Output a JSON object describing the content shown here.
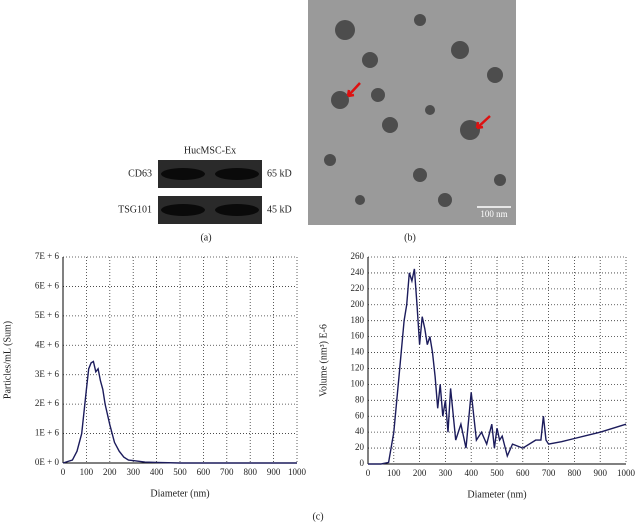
{
  "figure": {
    "blot": {
      "title": "HucMSC-Ex",
      "rows": [
        {
          "name": "CD63",
          "size": "65 kD"
        },
        {
          "name": "TSG101",
          "size": "45 kD"
        }
      ]
    },
    "scale_bar": "100 nm",
    "panel_labels": [
      "(a)",
      "(b)",
      "(c)"
    ]
  },
  "chart_data": [
    {
      "type": "line",
      "xlabel": "Diameter (nm)",
      "ylabel": "Particles/mL (Sum)",
      "color": "#1c1c5c",
      "grid": true,
      "x": [
        0,
        20,
        40,
        60,
        80,
        100,
        110,
        120,
        130,
        140,
        150,
        160,
        170,
        180,
        200,
        220,
        240,
        260,
        280,
        300,
        350,
        400,
        500,
        600,
        700,
        800,
        900,
        1000
      ],
      "values": [
        0,
        50000,
        100000,
        400000,
        1000000,
        2500000,
        3200000,
        3400000,
        3450000,
        3100000,
        3200000,
        2800000,
        2500000,
        2000000,
        1300000,
        700000,
        400000,
        200000,
        100000,
        80000,
        30000,
        20000,
        0,
        0,
        0,
        0,
        0,
        0
      ],
      "xlim": [
        0,
        1000
      ],
      "xticks": [
        0,
        100,
        200,
        300,
        400,
        500,
        600,
        700,
        800,
        900,
        1000
      ],
      "ylim": [
        0,
        7000000
      ],
      "yticks": [
        {
          "value": 0,
          "label": "0E + 0"
        },
        {
          "value": 1000000,
          "label": "1E + 6"
        },
        {
          "value": 2000000,
          "label": "2E + 6"
        },
        {
          "value": 3000000,
          "label": "3E + 6"
        },
        {
          "value": 4000000,
          "label": "4E + 6"
        },
        {
          "value": 5000000,
          "label": "5E + 6"
        },
        {
          "value": 6000000,
          "label": "6E + 6"
        },
        {
          "value": 7000000,
          "label": "7E + 6"
        }
      ]
    },
    {
      "type": "line",
      "xlabel": "Diameter (nm)",
      "ylabel": "Volume (nm³) E-6",
      "color": "#1c1c5c",
      "grid": true,
      "x": [
        0,
        50,
        80,
        100,
        120,
        140,
        150,
        160,
        170,
        180,
        190,
        200,
        210,
        220,
        230,
        240,
        250,
        260,
        270,
        280,
        290,
        300,
        310,
        320,
        340,
        360,
        380,
        400,
        410,
        420,
        440,
        460,
        480,
        490,
        500,
        510,
        520,
        540,
        560,
        600,
        650,
        670,
        680,
        690,
        700,
        750,
        800,
        850,
        900,
        950,
        1000
      ],
      "values": [
        0,
        0,
        2,
        40,
        110,
        180,
        200,
        240,
        230,
        245,
        200,
        150,
        185,
        170,
        150,
        160,
        140,
        110,
        70,
        100,
        60,
        80,
        40,
        95,
        30,
        50,
        20,
        90,
        60,
        30,
        40,
        25,
        50,
        20,
        45,
        30,
        35,
        10,
        25,
        20,
        30,
        30,
        60,
        30,
        25,
        28,
        32,
        36,
        40,
        45,
        50
      ],
      "xlim": [
        0,
        1000
      ],
      "xticks": [
        0,
        100,
        200,
        300,
        400,
        500,
        600,
        700,
        800,
        900,
        1000
      ],
      "ylim": [
        0,
        260
      ],
      "yticks": [
        0,
        20,
        40,
        60,
        80,
        100,
        120,
        140,
        160,
        180,
        200,
        220,
        240,
        260
      ]
    }
  ]
}
